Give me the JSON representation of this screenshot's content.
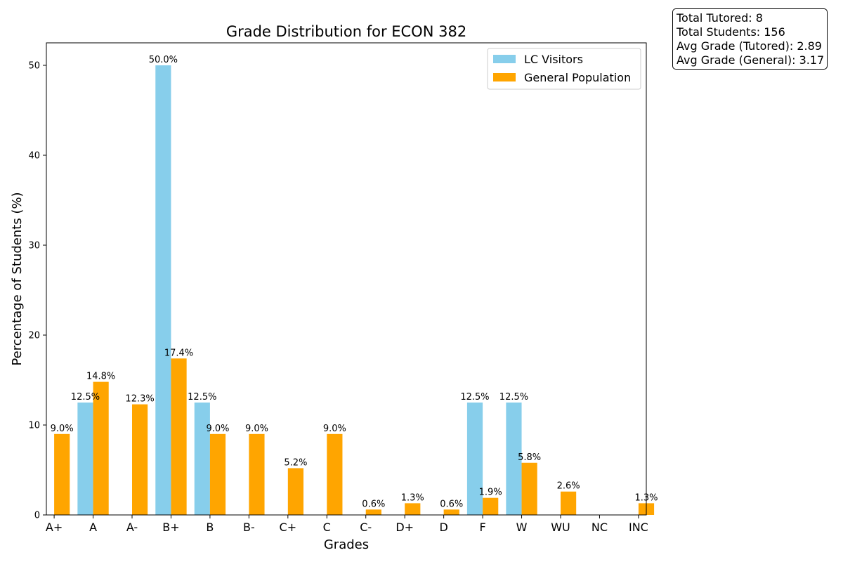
{
  "stats": {
    "total_tutored": "Total Tutored: 8",
    "total_students": "Total Students: 156",
    "avg_tutored": "Avg Grade (Tutored): 2.89",
    "avg_general": "Avg Grade (General): 3.17"
  },
  "chart_data": {
    "type": "bar",
    "title": "Grade Distribution for ECON 382",
    "xlabel": "Grades",
    "ylabel": "Percentage of Students (%)",
    "ylim": [
      0,
      52.5
    ],
    "yticks": [
      0,
      10,
      20,
      30,
      40,
      50
    ],
    "grid": false,
    "legend_position": "top-right",
    "categories": [
      "A+",
      "A",
      "A-",
      "B+",
      "B",
      "B-",
      "C+",
      "C",
      "C-",
      "D+",
      "D",
      "F",
      "W",
      "WU",
      "NC",
      "INC"
    ],
    "series": [
      {
        "name": "LC Visitors",
        "color": "#87CEEB",
        "values": [
          0,
          12.5,
          0,
          50.0,
          12.5,
          0,
          0,
          0,
          0,
          0,
          0,
          12.5,
          12.5,
          0,
          0,
          0
        ],
        "labels": [
          "",
          "12.5%",
          "",
          "50.0%",
          "12.5%",
          "",
          "",
          "",
          "",
          "",
          "",
          "12.5%",
          "12.5%",
          "",
          "",
          ""
        ]
      },
      {
        "name": "General Population",
        "color": "#FFA500",
        "values": [
          9.0,
          14.8,
          12.3,
          17.4,
          9.0,
          9.0,
          5.2,
          9.0,
          0.6,
          1.3,
          0.6,
          1.9,
          5.8,
          2.6,
          0,
          1.3
        ],
        "labels": [
          "9.0%",
          "14.8%",
          "12.3%",
          "17.4%",
          "9.0%",
          "9.0%",
          "5.2%",
          "9.0%",
          "0.6%",
          "1.3%",
          "0.6%",
          "1.9%",
          "5.8%",
          "2.6%",
          "",
          "1.3%"
        ]
      }
    ]
  }
}
